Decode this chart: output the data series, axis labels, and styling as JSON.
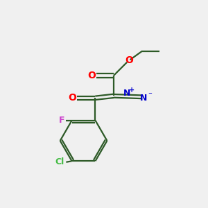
{
  "background_color": "#f0f0f0",
  "bond_color": "#2d5a27",
  "o_color": "#ff0000",
  "f_color": "#cc44cc",
  "cl_color": "#44bb44",
  "n_color": "#0000cc",
  "line_width": 1.6,
  "figsize": [
    3.0,
    3.0
  ],
  "dpi": 100,
  "xlim": [
    0,
    10
  ],
  "ylim": [
    0,
    10
  ]
}
